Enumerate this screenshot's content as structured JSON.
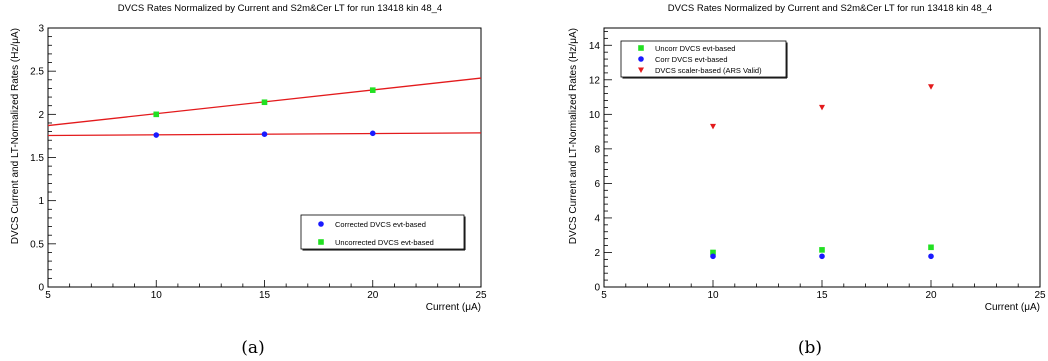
{
  "chart_data": [
    {
      "type": "scatter",
      "caption": "(a)",
      "title": "DVCS Rates Normalized by Current and S2m&Cer LT for run 13418 kin 48_4",
      "xlabel": "Current (μA)",
      "ylabel": "DVCS Current and LT-Normalized Rates (Hz/μA)",
      "xlim": [
        5,
        25
      ],
      "ylim": [
        0,
        3
      ],
      "xticks": [
        "5",
        "10",
        "15",
        "20",
        "25"
      ],
      "yticks": [
        "0",
        "0.5",
        "1",
        "1.5",
        "2",
        "2.5",
        "3"
      ],
      "grid": false,
      "legend_position": "bottom-right",
      "series": [
        {
          "name": "Corrected DVCS evt-based",
          "color": "#1a1aff",
          "marker": "circle",
          "x": [
            10,
            15,
            20
          ],
          "y": [
            1.76,
            1.77,
            1.78
          ],
          "fit": {
            "color": "#e31a1c",
            "x": [
              5,
              25
            ],
            "y": [
              1.755,
              1.785
            ]
          }
        },
        {
          "name": "Uncorrected DVCS evt-based",
          "color": "#22e022",
          "marker": "square",
          "x": [
            10,
            15,
            20
          ],
          "y": [
            2.0,
            2.14,
            2.28
          ],
          "fit": {
            "color": "#e31a1c",
            "x": [
              5,
              25
            ],
            "y": [
              1.87,
              2.42
            ]
          }
        }
      ]
    },
    {
      "type": "scatter",
      "caption": "(b)",
      "title": "DVCS Rates Normalized by Current and S2m&Cer LT for run 13418 kin 48_4",
      "xlabel": "Current (μA)",
      "ylabel": "DVCS Current and LT-Normalized Rates (Hz/μA)",
      "xlim": [
        5,
        25
      ],
      "ylim": [
        0,
        15
      ],
      "xticks": [
        "5",
        "10",
        "15",
        "20",
        "25"
      ],
      "yticks": [
        "0",
        "2",
        "4",
        "6",
        "8",
        "10",
        "12",
        "14"
      ],
      "grid": false,
      "legend_position": "top-left",
      "series": [
        {
          "name": "Uncorr DVCS evt-based",
          "color": "#22e022",
          "marker": "square",
          "x": [
            10,
            15,
            20
          ],
          "y": [
            2.0,
            2.15,
            2.3
          ]
        },
        {
          "name": "Corr DVCS evt-based",
          "color": "#1a1aff",
          "marker": "circle",
          "x": [
            10,
            15,
            20
          ],
          "y": [
            1.78,
            1.78,
            1.78
          ]
        },
        {
          "name": "DVCS scaler-based (ARS Valid)",
          "color": "#e31a1c",
          "marker": "triangle-down",
          "x": [
            10,
            15,
            20
          ],
          "y": [
            9.3,
            10.4,
            11.6
          ]
        }
      ]
    }
  ]
}
